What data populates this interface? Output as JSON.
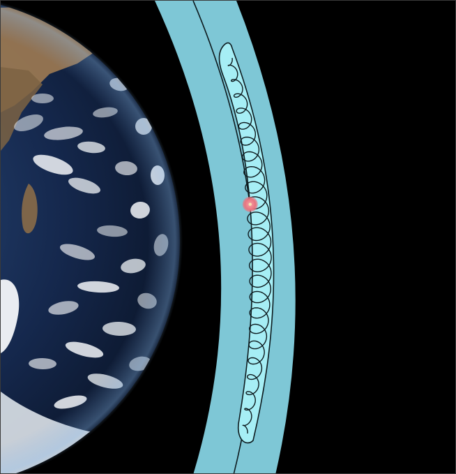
{
  "diagram": {
    "subject": "earth-orbit-belt",
    "colors": {
      "space": "#000000",
      "outer_band": "#7ec7d6",
      "inner_lens": "#a6eef5",
      "outline": "#0d1a1e",
      "marker": "#e8747f",
      "ocean_dark": "#0e1a36",
      "ocean_mid": "#1d3561",
      "land": "#9c7a52",
      "cloud": "#f2f5f8"
    },
    "loops": {
      "count": 24,
      "marker_loop_index": 9
    }
  }
}
